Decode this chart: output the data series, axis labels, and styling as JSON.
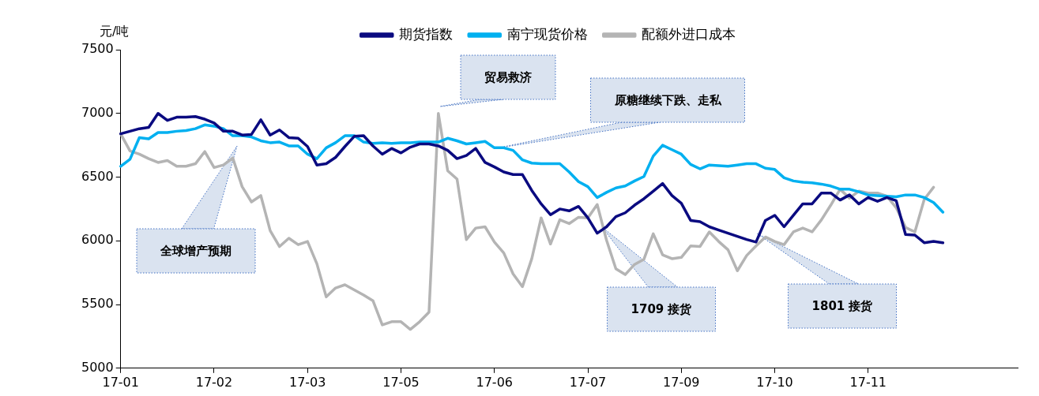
{
  "chart_data": {
    "type": "line",
    "ylabel": "元/吨",
    "legend": "top",
    "marker": "none",
    "line_style": "solid",
    "grid": false,
    "categories": [
      "17-01",
      null,
      null,
      null,
      null,
      null,
      null,
      null,
      null,
      null,
      "17-02",
      null,
      null,
      null,
      null,
      null,
      null,
      null,
      null,
      null,
      "17-03",
      null,
      null,
      null,
      null,
      null,
      null,
      null,
      null,
      null,
      "17-05",
      null,
      null,
      null,
      null,
      null,
      null,
      null,
      null,
      null,
      "17-06",
      null,
      null,
      null,
      null,
      null,
      null,
      null,
      null,
      null,
      "17-07",
      null,
      null,
      null,
      null,
      null,
      null,
      null,
      null,
      null,
      "17-09",
      null,
      null,
      null,
      null,
      null,
      null,
      null,
      null,
      null,
      "17-10",
      null,
      null,
      null,
      null,
      null,
      null,
      null,
      null,
      null,
      "17-11",
      null,
      null,
      null,
      null,
      null,
      null,
      null,
      null,
      null,
      null,
      null,
      null,
      null,
      null,
      null,
      null
    ],
    "ylim": [
      5000,
      7500
    ],
    "yticks": [
      5000,
      5500,
      6000,
      6500,
      7000,
      7500
    ],
    "series": [
      {
        "name": "期货指数",
        "color": "#0a0a80",
        "values": [
          6840,
          6860,
          6880,
          6890,
          7000,
          6945,
          6970,
          6970,
          6975,
          6955,
          6925,
          6860,
          6860,
          6830,
          6835,
          6950,
          6830,
          6870,
          6810,
          6805,
          6740,
          6595,
          6605,
          6655,
          6740,
          6820,
          6825,
          6745,
          6680,
          6725,
          6690,
          6735,
          6760,
          6760,
          6745,
          6710,
          6645,
          6670,
          6725,
          6615,
          6580,
          6540,
          6520,
          6520,
          6395,
          6290,
          6205,
          6250,
          6235,
          6270,
          6180,
          6060,
          6110,
          6190,
          6220,
          6280,
          6330,
          6390,
          6450,
          6355,
          6295,
          6160,
          6150,
          6110,
          6085,
          6060,
          6035,
          6010,
          5990,
          6160,
          6200,
          6110,
          6200,
          6290,
          6290,
          6375,
          6375,
          6320,
          6360,
          6290,
          6340,
          6310,
          6340,
          6315,
          6050,
          6045,
          5985,
          5995,
          5985,
          null,
          null,
          null,
          null,
          null,
          null,
          null,
          null
        ]
      },
      {
        "name": "南宁现货价格",
        "color": "#00b0f0",
        "values": [
          6585,
          6640,
          6810,
          6800,
          6850,
          6850,
          6860,
          6865,
          6880,
          6910,
          6900,
          6880,
          6825,
          6825,
          6815,
          6785,
          6770,
          6775,
          6745,
          6745,
          6680,
          6645,
          6730,
          6770,
          6825,
          6825,
          6775,
          6765,
          6770,
          6765,
          6770,
          6770,
          6775,
          6775,
          6775,
          6805,
          6785,
          6760,
          6770,
          6780,
          6730,
          6730,
          6710,
          6635,
          6610,
          6605,
          6605,
          6605,
          6540,
          6465,
          6425,
          6340,
          6380,
          6415,
          6430,
          6470,
          6505,
          6665,
          6750,
          6715,
          6680,
          6600,
          6565,
          6595,
          6590,
          6585,
          6595,
          6605,
          6605,
          6570,
          6560,
          6495,
          6470,
          6460,
          6455,
          6445,
          6430,
          6405,
          6405,
          6385,
          6360,
          6355,
          6350,
          6345,
          6360,
          6360,
          6340,
          6300,
          6225,
          null,
          null,
          null,
          null,
          null,
          null,
          null,
          null
        ]
      },
      {
        "name": "配额外进口成本",
        "color": "#b4b4b4",
        "values": [
          6840,
          6705,
          6680,
          6645,
          6615,
          6630,
          6585,
          6585,
          6605,
          6700,
          6575,
          6595,
          6650,
          6425,
          6305,
          6355,
          6080,
          5955,
          6020,
          5970,
          5995,
          5820,
          5560,
          5630,
          5655,
          5615,
          5575,
          5530,
          5340,
          5365,
          5365,
          5305,
          5365,
          5440,
          7000,
          6550,
          6485,
          6010,
          6100,
          6110,
          5990,
          5905,
          5740,
          5640,
          5860,
          6180,
          5975,
          6165,
          6135,
          6185,
          6180,
          6285,
          6005,
          5780,
          5735,
          5815,
          5855,
          6055,
          5890,
          5860,
          5870,
          5960,
          5955,
          6070,
          5995,
          5930,
          5765,
          5885,
          5960,
          6030,
          5995,
          5970,
          6070,
          6100,
          6070,
          6165,
          6280,
          6405,
          6335,
          6390,
          6375,
          6375,
          6350,
          6260,
          6105,
          6070,
          6325,
          6420,
          null,
          null,
          null,
          null,
          null,
          null,
          null,
          null,
          null
        ]
      }
    ],
    "annotations": [
      "全球增产预期",
      "贸易救济",
      "原糖继续下跌、走私",
      "1709 接货",
      "1801 接货"
    ]
  }
}
